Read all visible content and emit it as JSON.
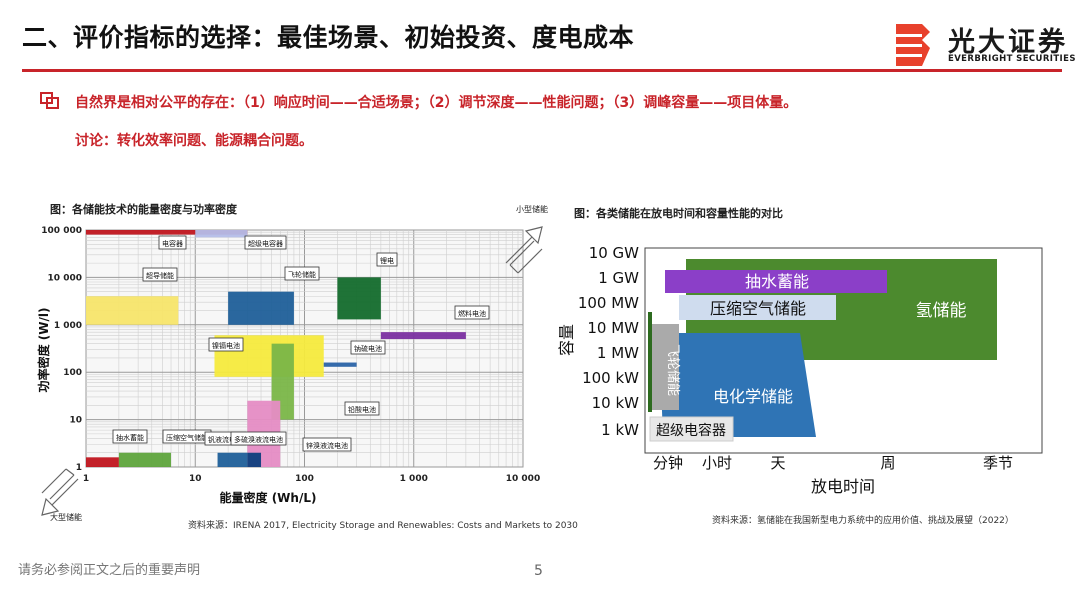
{
  "header": {
    "title": "二、评价指标的选择：最佳场景、初始投资、度电成本",
    "logo_cn": "光大证券",
    "logo_en": "EVERBRIGHT SECURITIES",
    "accent": "#c8242a"
  },
  "bullets": [
    "自然界是相对公平的存在：（1）响应时间——合适场景；（2）调节深度——性能问题；（3）调峰容量——项目体量。",
    "讨论：转化效率问题、能源耦合问题。"
  ],
  "figure_left": {
    "title": "图：各储能技术的能量密度与功率密度",
    "source": "资料来源：IRENA 2017, Electricity Storage and Renewables: Costs and Markets to 2030",
    "corner_top_right": "小型储能",
    "corner_bottom_left": "大型储能"
  },
  "figure_right": {
    "title": "图：各类储能在放电时间和容量性能的对比",
    "source": "资料来源：氢储能在我国新型电力系统中的应用价值、挑战及展望（2022）"
  },
  "chart_data": [
    {
      "type": "area",
      "xscale": "log",
      "yscale": "log",
      "xlabel": "能量密度 (Wh/L)",
      "ylabel": "功率密度 (W/l)",
      "xlim": [
        1,
        10000
      ],
      "ylim": [
        1,
        100000
      ],
      "xticks": [
        "1",
        "10",
        "100",
        "1 000",
        "10 000"
      ],
      "yticks": [
        "100 000",
        "10 000",
        "1 000",
        "100",
        "10",
        "1"
      ],
      "series": [
        {
          "name": "电容器",
          "x": [
            1,
            30
          ],
          "y": [
            80000,
            100000
          ],
          "color": "#c0151d"
        },
        {
          "name": "超级电容器",
          "x": [
            10,
            30
          ],
          "y": [
            70000,
            100000
          ],
          "color": "#b4bde8"
        },
        {
          "name": "超导储能",
          "x": [
            1,
            7
          ],
          "y": [
            1000,
            4000
          ],
          "color": "#f7e56a"
        },
        {
          "name": "飞轮储能",
          "x": [
            20,
            80
          ],
          "y": [
            1000,
            5000
          ],
          "color": "#1f5f99"
        },
        {
          "name": "锂电",
          "x": [
            200,
            500
          ],
          "y": [
            1300,
            10000
          ],
          "color": "#136b2c"
        },
        {
          "name": "燃料电池",
          "x": [
            500,
            3000
          ],
          "y": [
            500,
            700
          ],
          "color": "#7a2fa0"
        },
        {
          "name": "镍镉电池",
          "x": [
            15,
            150
          ],
          "y": [
            80,
            600
          ],
          "color": "#f5ea3d"
        },
        {
          "name": "钠硫电池",
          "x": [
            150,
            300
          ],
          "y": [
            130,
            160
          ],
          "color": "#2a63a6"
        },
        {
          "name": "铅酸电池",
          "x": [
            50,
            80
          ],
          "y": [
            10,
            400
          ],
          "color": "#7ab648"
        },
        {
          "name": "锌溴液流电池",
          "x": [
            30,
            60
          ],
          "y": [
            1,
            25
          ],
          "color": "#e58cc4"
        },
        {
          "name": "抽水蓄能",
          "x": [
            1,
            2
          ],
          "y": [
            1,
            1.6
          ],
          "color": "#c0151d"
        },
        {
          "name": "压缩空气储能",
          "x": [
            2,
            6
          ],
          "y": [
            1,
            2
          ],
          "color": "#5ea43c"
        },
        {
          "name": "钒液流电池",
          "x": [
            16,
            30
          ],
          "y": [
            1,
            2
          ],
          "color": "#1f5f99"
        },
        {
          "name": "多硫溴液流电池",
          "x": [
            30,
            40
          ],
          "y": [
            1,
            2
          ],
          "color": "#0e3f7d"
        }
      ],
      "legend": "inline-labels"
    },
    {
      "type": "area",
      "xlabel": "放电时间",
      "ylabel": "容量",
      "xticks": [
        "分钟",
        "小时",
        "天",
        "周",
        "季节"
      ],
      "yticks": [
        "10 GW",
        "1 GW",
        "100 MW",
        "10 MW",
        "1 MW",
        "100 kW",
        "10 kW",
        "1 kW"
      ],
      "series": [
        {
          "name": "抽水蓄能",
          "color": "#8b3fc8"
        },
        {
          "name": "压缩空气储能",
          "color": "#cfdcee"
        },
        {
          "name": "氢储能",
          "color": "#4c8a2e"
        },
        {
          "name": "电化学储能",
          "color": "#2f74b5"
        },
        {
          "name": "飞轮储能",
          "color": "#aaaaaa"
        },
        {
          "name": "超级电容器",
          "color": "#e8e8e8"
        }
      ],
      "legend": "inline-labels"
    }
  ],
  "footer": {
    "note": "请务必参阅正文之后的重要声明",
    "page_number": "5"
  }
}
